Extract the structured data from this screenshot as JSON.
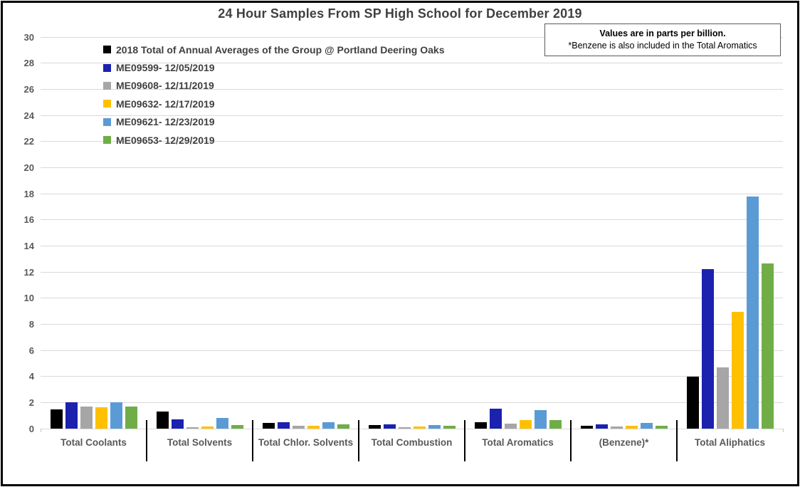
{
  "title": "24 Hour Samples From SP High School for December 2019",
  "note": {
    "line1": "Values are in parts per billion.",
    "line2": "*Benzene is also included in the Total Aromatics"
  },
  "chart_data": {
    "type": "bar",
    "title": "24 Hour Samples From SP High School for December 2019",
    "unit": "parts per billion",
    "xlabel": "",
    "ylabel": "",
    "ylim": [
      0,
      30
    ],
    "ytick_step": 2,
    "grid": true,
    "legend_position": "top-left-inside",
    "categories": [
      "Total Coolants",
      "Total Solvents",
      "Total Chlor. Solvents",
      "Total Combustion",
      "Total Aromatics",
      "(Benzene)*",
      "Total Aliphatics"
    ],
    "series": [
      {
        "name": "2018 Total of Annual Averages of the Group @ Portland Deering Oaks",
        "color": "#000000",
        "values": [
          1.45,
          1.3,
          0.45,
          0.3,
          0.5,
          0.2,
          4.0
        ]
      },
      {
        "name": "ME09599- 12/05/2019",
        "color": "#1c21ae",
        "values": [
          2.0,
          0.7,
          0.5,
          0.35,
          1.55,
          0.35,
          12.2
        ]
      },
      {
        "name": "ME09608- 12/11/2019",
        "color": "#a6a6a6",
        "values": [
          1.7,
          0.1,
          0.2,
          0.1,
          0.4,
          0.15,
          4.7
        ]
      },
      {
        "name": "ME09632- 12/17/2019",
        "color": "#ffc000",
        "values": [
          1.65,
          0.15,
          0.2,
          0.15,
          0.65,
          0.2,
          8.95
        ]
      },
      {
        "name": "ME09621- 12/23/2019",
        "color": "#5b9bd5",
        "values": [
          2.0,
          0.8,
          0.5,
          0.3,
          1.4,
          0.45,
          17.8
        ]
      },
      {
        "name": "ME09653- 12/29/2019",
        "color": "#70ad47",
        "values": [
          1.7,
          0.25,
          0.35,
          0.2,
          0.65,
          0.2,
          12.65
        ]
      }
    ]
  },
  "colors": {
    "gridline": "#d9d9d9",
    "axis_text": "#595959",
    "title_text": "#404040",
    "separator": "#000000"
  }
}
